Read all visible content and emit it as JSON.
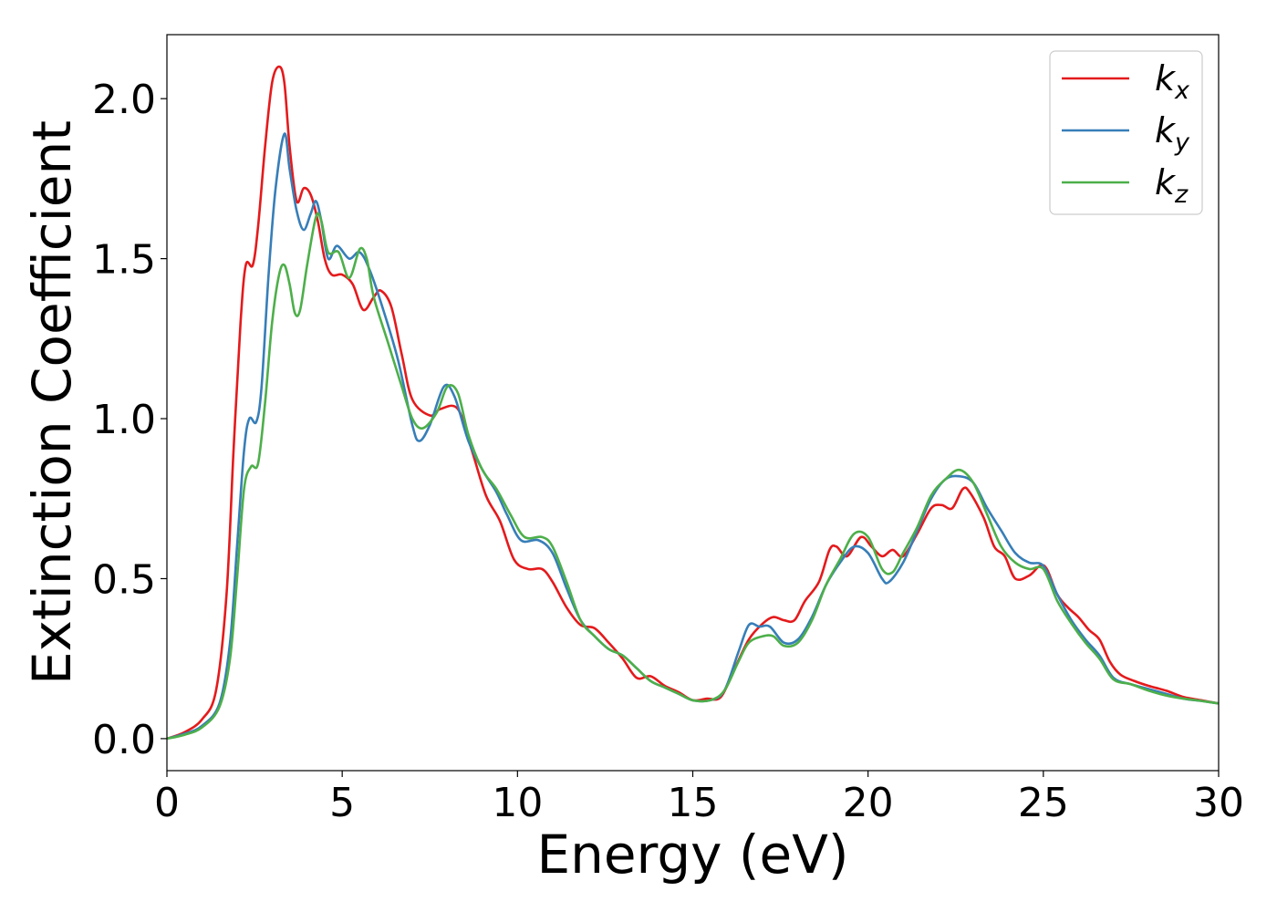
{
  "chart_data": {
    "type": "line",
    "title": "",
    "xlabel": "Energy (eV)",
    "ylabel": "Extinction Coefficient",
    "xlim": [
      0,
      30
    ],
    "ylim": [
      -0.1,
      2.2
    ],
    "xticks": [
      0,
      5,
      10,
      15,
      20,
      25,
      30
    ],
    "xtick_labels": [
      "0",
      "5",
      "10",
      "15",
      "20",
      "25",
      "30"
    ],
    "yticks": [
      0.0,
      0.5,
      1.0,
      1.5,
      2.0
    ],
    "ytick_labels": [
      "0.0",
      "0.5",
      "1.0",
      "1.5",
      "2.0"
    ],
    "grid": false,
    "legend_position": "top-right",
    "series": [
      {
        "name": "k",
        "subscript": "x",
        "color": "#e41a1c",
        "points": [
          [
            0,
            0
          ],
          [
            0.5,
            0.02
          ],
          [
            1,
            0.06
          ],
          [
            1.4,
            0.15
          ],
          [
            1.7,
            0.45
          ],
          [
            1.9,
            0.9
          ],
          [
            2.1,
            1.3
          ],
          [
            2.25,
            1.48
          ],
          [
            2.45,
            1.48
          ],
          [
            2.6,
            1.6
          ],
          [
            2.8,
            1.85
          ],
          [
            3.0,
            2.05
          ],
          [
            3.2,
            2.1
          ],
          [
            3.35,
            2.05
          ],
          [
            3.5,
            1.85
          ],
          [
            3.7,
            1.68
          ],
          [
            3.9,
            1.72
          ],
          [
            4.1,
            1.7
          ],
          [
            4.3,
            1.62
          ],
          [
            4.5,
            1.5
          ],
          [
            4.7,
            1.45
          ],
          [
            5.0,
            1.45
          ],
          [
            5.3,
            1.42
          ],
          [
            5.6,
            1.34
          ],
          [
            5.9,
            1.38
          ],
          [
            6.1,
            1.4
          ],
          [
            6.4,
            1.35
          ],
          [
            6.7,
            1.2
          ],
          [
            7.0,
            1.06
          ],
          [
            7.5,
            1.01
          ],
          [
            7.8,
            1.03
          ],
          [
            8.3,
            1.03
          ],
          [
            8.7,
            0.9
          ],
          [
            9.1,
            0.76
          ],
          [
            9.5,
            0.68
          ],
          [
            9.9,
            0.56
          ],
          [
            10.3,
            0.53
          ],
          [
            10.7,
            0.53
          ],
          [
            11.0,
            0.49
          ],
          [
            11.4,
            0.41
          ],
          [
            11.8,
            0.355
          ],
          [
            12.2,
            0.345
          ],
          [
            12.6,
            0.3
          ],
          [
            13.0,
            0.25
          ],
          [
            13.4,
            0.19
          ],
          [
            13.8,
            0.195
          ],
          [
            14.2,
            0.165
          ],
          [
            14.6,
            0.145
          ],
          [
            15.0,
            0.12
          ],
          [
            15.4,
            0.125
          ],
          [
            15.8,
            0.13
          ],
          [
            16.2,
            0.22
          ],
          [
            16.6,
            0.31
          ],
          [
            17.0,
            0.36
          ],
          [
            17.3,
            0.38
          ],
          [
            17.6,
            0.37
          ],
          [
            17.9,
            0.37
          ],
          [
            18.2,
            0.43
          ],
          [
            18.6,
            0.49
          ],
          [
            18.9,
            0.59
          ],
          [
            19.1,
            0.6
          ],
          [
            19.4,
            0.57
          ],
          [
            19.8,
            0.63
          ],
          [
            20.1,
            0.6
          ],
          [
            20.4,
            0.57
          ],
          [
            20.7,
            0.59
          ],
          [
            21.0,
            0.57
          ],
          [
            21.4,
            0.64
          ],
          [
            21.8,
            0.72
          ],
          [
            22.1,
            0.73
          ],
          [
            22.4,
            0.72
          ],
          [
            22.7,
            0.78
          ],
          [
            22.9,
            0.77
          ],
          [
            23.3,
            0.69
          ],
          [
            23.6,
            0.6
          ],
          [
            23.9,
            0.57
          ],
          [
            24.2,
            0.5
          ],
          [
            24.6,
            0.51
          ],
          [
            24.9,
            0.54
          ],
          [
            25.1,
            0.53
          ],
          [
            25.4,
            0.45
          ],
          [
            25.7,
            0.41
          ],
          [
            26.0,
            0.38
          ],
          [
            26.3,
            0.34
          ],
          [
            26.6,
            0.31
          ],
          [
            26.9,
            0.24
          ],
          [
            27.2,
            0.2
          ],
          [
            27.6,
            0.18
          ],
          [
            28.0,
            0.165
          ],
          [
            28.5,
            0.15
          ],
          [
            29.0,
            0.13
          ],
          [
            29.5,
            0.12
          ],
          [
            30,
            0.11
          ]
        ]
      },
      {
        "name": "k",
        "subscript": "y",
        "color": "#377eb8",
        "points": [
          [
            0,
            0
          ],
          [
            0.5,
            0.015
          ],
          [
            1,
            0.04
          ],
          [
            1.5,
            0.11
          ],
          [
            1.8,
            0.3
          ],
          [
            2.0,
            0.6
          ],
          [
            2.2,
            0.9
          ],
          [
            2.35,
            1.0
          ],
          [
            2.55,
            0.99
          ],
          [
            2.7,
            1.1
          ],
          [
            2.9,
            1.45
          ],
          [
            3.1,
            1.72
          ],
          [
            3.35,
            1.89
          ],
          [
            3.5,
            1.78
          ],
          [
            3.7,
            1.65
          ],
          [
            3.9,
            1.59
          ],
          [
            4.1,
            1.64
          ],
          [
            4.25,
            1.68
          ],
          [
            4.4,
            1.62
          ],
          [
            4.6,
            1.5
          ],
          [
            4.85,
            1.54
          ],
          [
            5.2,
            1.5
          ],
          [
            5.5,
            1.52
          ],
          [
            5.8,
            1.46
          ],
          [
            6.2,
            1.33
          ],
          [
            6.6,
            1.18
          ],
          [
            7.0,
            0.98
          ],
          [
            7.2,
            0.93
          ],
          [
            7.5,
            0.98
          ],
          [
            7.9,
            1.1
          ],
          [
            8.2,
            1.07
          ],
          [
            8.6,
            0.93
          ],
          [
            9.0,
            0.84
          ],
          [
            9.4,
            0.77
          ],
          [
            9.7,
            0.7
          ],
          [
            10.1,
            0.62
          ],
          [
            10.6,
            0.62
          ],
          [
            11.0,
            0.58
          ],
          [
            11.4,
            0.47
          ],
          [
            11.8,
            0.37
          ],
          [
            12.2,
            0.32
          ],
          [
            12.6,
            0.28
          ],
          [
            13.0,
            0.26
          ],
          [
            13.4,
            0.22
          ],
          [
            13.8,
            0.18
          ],
          [
            14.2,
            0.16
          ],
          [
            14.6,
            0.14
          ],
          [
            15.0,
            0.12
          ],
          [
            15.5,
            0.12
          ],
          [
            15.9,
            0.15
          ],
          [
            16.3,
            0.27
          ],
          [
            16.6,
            0.355
          ],
          [
            16.9,
            0.35
          ],
          [
            17.2,
            0.35
          ],
          [
            17.6,
            0.3
          ],
          [
            18.0,
            0.31
          ],
          [
            18.4,
            0.38
          ],
          [
            18.8,
            0.48
          ],
          [
            19.2,
            0.55
          ],
          [
            19.6,
            0.6
          ],
          [
            20.0,
            0.58
          ],
          [
            20.4,
            0.5
          ],
          [
            20.6,
            0.49
          ],
          [
            21.0,
            0.55
          ],
          [
            21.4,
            0.65
          ],
          [
            21.8,
            0.75
          ],
          [
            22.2,
            0.81
          ],
          [
            22.6,
            0.82
          ],
          [
            23.0,
            0.8
          ],
          [
            23.4,
            0.72
          ],
          [
            23.8,
            0.65
          ],
          [
            24.2,
            0.58
          ],
          [
            24.6,
            0.55
          ],
          [
            25.0,
            0.54
          ],
          [
            25.4,
            0.45
          ],
          [
            25.8,
            0.37
          ],
          [
            26.2,
            0.31
          ],
          [
            26.6,
            0.26
          ],
          [
            27.0,
            0.19
          ],
          [
            27.5,
            0.17
          ],
          [
            28.0,
            0.155
          ],
          [
            28.5,
            0.14
          ],
          [
            29.0,
            0.125
          ],
          [
            29.5,
            0.118
          ],
          [
            30,
            0.11
          ]
        ]
      },
      {
        "name": "k",
        "subscript": "z",
        "color": "#4daf4a",
        "points": [
          [
            0,
            0
          ],
          [
            0.5,
            0.012
          ],
          [
            1,
            0.035
          ],
          [
            1.5,
            0.1
          ],
          [
            1.8,
            0.25
          ],
          [
            2.0,
            0.5
          ],
          [
            2.2,
            0.78
          ],
          [
            2.4,
            0.85
          ],
          [
            2.6,
            0.86
          ],
          [
            2.8,
            1.05
          ],
          [
            3.0,
            1.3
          ],
          [
            3.2,
            1.45
          ],
          [
            3.35,
            1.48
          ],
          [
            3.5,
            1.42
          ],
          [
            3.65,
            1.33
          ],
          [
            3.8,
            1.34
          ],
          [
            4.0,
            1.48
          ],
          [
            4.25,
            1.63
          ],
          [
            4.4,
            1.62
          ],
          [
            4.6,
            1.52
          ],
          [
            4.9,
            1.52
          ],
          [
            5.2,
            1.44
          ],
          [
            5.5,
            1.53
          ],
          [
            5.7,
            1.5
          ],
          [
            5.9,
            1.38
          ],
          [
            6.3,
            1.24
          ],
          [
            6.7,
            1.1
          ],
          [
            7.0,
            1.0
          ],
          [
            7.3,
            0.97
          ],
          [
            7.7,
            1.02
          ],
          [
            8.0,
            1.1
          ],
          [
            8.3,
            1.08
          ],
          [
            8.6,
            0.95
          ],
          [
            9.0,
            0.84
          ],
          [
            9.4,
            0.78
          ],
          [
            9.8,
            0.7
          ],
          [
            10.2,
            0.63
          ],
          [
            10.7,
            0.63
          ],
          [
            11.0,
            0.6
          ],
          [
            11.4,
            0.49
          ],
          [
            11.8,
            0.37
          ],
          [
            12.2,
            0.32
          ],
          [
            12.6,
            0.28
          ],
          [
            13.0,
            0.26
          ],
          [
            13.4,
            0.22
          ],
          [
            13.8,
            0.18
          ],
          [
            14.2,
            0.16
          ],
          [
            14.6,
            0.14
          ],
          [
            15.0,
            0.12
          ],
          [
            15.5,
            0.12
          ],
          [
            15.9,
            0.15
          ],
          [
            16.3,
            0.24
          ],
          [
            16.6,
            0.3
          ],
          [
            17.0,
            0.32
          ],
          [
            17.3,
            0.32
          ],
          [
            17.6,
            0.29
          ],
          [
            18.0,
            0.3
          ],
          [
            18.4,
            0.37
          ],
          [
            18.8,
            0.48
          ],
          [
            19.2,
            0.56
          ],
          [
            19.6,
            0.64
          ],
          [
            20.0,
            0.63
          ],
          [
            20.4,
            0.53
          ],
          [
            20.7,
            0.52
          ],
          [
            21.0,
            0.58
          ],
          [
            21.4,
            0.66
          ],
          [
            21.8,
            0.76
          ],
          [
            22.2,
            0.81
          ],
          [
            22.6,
            0.84
          ],
          [
            23.0,
            0.8
          ],
          [
            23.4,
            0.7
          ],
          [
            23.8,
            0.6
          ],
          [
            24.2,
            0.55
          ],
          [
            24.6,
            0.53
          ],
          [
            25.0,
            0.53
          ],
          [
            25.4,
            0.43
          ],
          [
            25.8,
            0.36
          ],
          [
            26.2,
            0.3
          ],
          [
            26.6,
            0.25
          ],
          [
            27.0,
            0.185
          ],
          [
            27.5,
            0.17
          ],
          [
            28.0,
            0.15
          ],
          [
            28.5,
            0.135
          ],
          [
            29.0,
            0.125
          ],
          [
            29.5,
            0.118
          ],
          [
            30,
            0.11
          ]
        ]
      }
    ]
  }
}
